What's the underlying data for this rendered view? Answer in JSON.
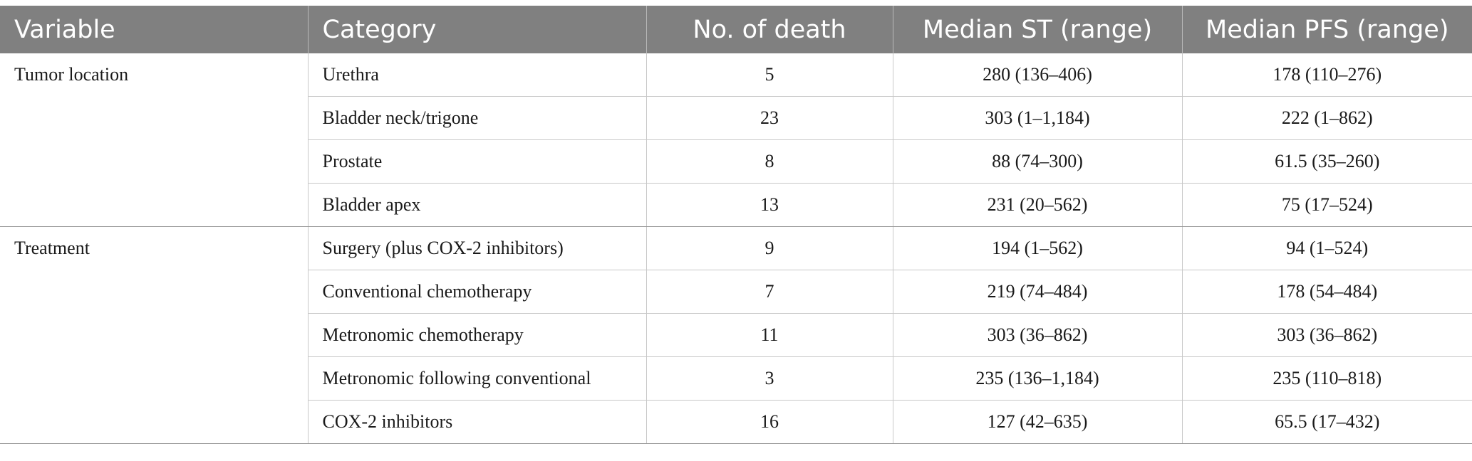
{
  "table": {
    "headers": [
      "Variable",
      "Category",
      "No. of death",
      "Median ST (range)",
      "Median PFS (range)"
    ],
    "groups": [
      {
        "variable": "Tumor location",
        "rows": [
          {
            "category": "Urethra",
            "deaths": "5",
            "median_st": "280 (136–406)",
            "median_pfs": "178 (110–276)"
          },
          {
            "category": "Bladder neck/trigone",
            "deaths": "23",
            "median_st": "303 (1–1,184)",
            "median_pfs": "222 (1–862)"
          },
          {
            "category": "Prostate",
            "deaths": "8",
            "median_st": "88 (74–300)",
            "median_pfs": "61.5 (35–260)"
          },
          {
            "category": "Bladder apex",
            "deaths": "13",
            "median_st": "231 (20–562)",
            "median_pfs": "75 (17–524)"
          }
        ]
      },
      {
        "variable": "Treatment",
        "rows": [
          {
            "category": "Surgery (plus COX-2 inhibitors)",
            "deaths": "9",
            "median_st": "194 (1–562)",
            "median_pfs": "94 (1–524)"
          },
          {
            "category": "Conventional chemotherapy",
            "deaths": "7",
            "median_st": "219 (74–484)",
            "median_pfs": "178 (54–484)"
          },
          {
            "category": "Metronomic chemotherapy",
            "deaths": "11",
            "median_st": "303 (36–862)",
            "median_pfs": "303 (36–862)"
          },
          {
            "category": "Metronomic following conventional",
            "deaths": "3",
            "median_st": "235 (136–1,184)",
            "median_pfs": "235 (110–818)"
          },
          {
            "category": "COX-2 inhibitors",
            "deaths": "16",
            "median_st": "127 (42–635)",
            "median_pfs": "65.5 (17–432)"
          }
        ]
      }
    ]
  }
}
